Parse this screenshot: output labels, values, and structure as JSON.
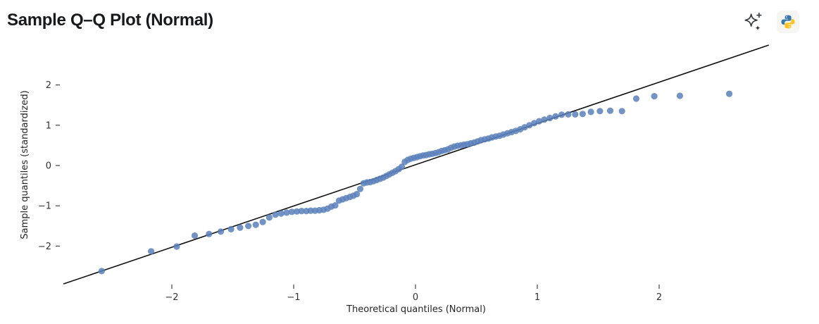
{
  "header": {
    "title": "Sample Q–Q Plot (Normal)",
    "icons": [
      {
        "name": "ai-sparkle-icon",
        "color": "#33393d"
      },
      {
        "name": "python-logo-icon",
        "blue": "#3776ab",
        "yellow": "#fcc21f"
      }
    ]
  },
  "chart_data": {
    "type": "scatter",
    "title": "Sample Q–Q Plot (Normal)",
    "xlabel": "Theoretical quantiles (Normal)",
    "ylabel": "Sample quantiles (standardized)",
    "x_ticks": [
      -2,
      -1,
      0,
      1,
      2
    ],
    "y_ticks": [
      -2,
      -1,
      0,
      1,
      2
    ],
    "xlim": [
      -2.92,
      2.95
    ],
    "ylim": [
      -2.97,
      2.99
    ],
    "grid": false,
    "legend": null,
    "point_color": "#5b80bb",
    "point_opacity": 0.85,
    "reference_line": {
      "type": "y=x",
      "from": [
        -2.89,
        -2.94
      ],
      "to": [
        2.9,
        2.99
      ],
      "color": "#111111"
    },
    "points": [
      [
        -2.576,
        -2.62
      ],
      [
        -2.17,
        -2.13
      ],
      [
        -1.96,
        -2.01
      ],
      [
        -1.812,
        -1.74
      ],
      [
        -1.695,
        -1.7
      ],
      [
        -1.598,
        -1.64
      ],
      [
        -1.514,
        -1.58
      ],
      [
        -1.44,
        -1.54
      ],
      [
        -1.372,
        -1.5
      ],
      [
        -1.311,
        -1.47
      ],
      [
        -1.254,
        -1.4
      ],
      [
        -1.2,
        -1.29
      ],
      [
        -1.15,
        -1.22
      ],
      [
        -1.103,
        -1.19
      ],
      [
        -1.058,
        -1.17
      ],
      [
        -1.015,
        -1.15
      ],
      [
        -0.974,
        -1.14
      ],
      [
        -0.935,
        -1.13
      ],
      [
        -0.896,
        -1.13
      ],
      [
        -0.86,
        -1.12
      ],
      [
        -0.824,
        -1.12
      ],
      [
        -0.789,
        -1.11
      ],
      [
        -0.755,
        -1.1
      ],
      [
        -0.722,
        -1.07
      ],
      [
        -0.69,
        -1.02
      ],
      [
        -0.659,
        -0.99
      ],
      [
        -0.628,
        -0.87
      ],
      [
        -0.598,
        -0.84
      ],
      [
        -0.568,
        -0.81
      ],
      [
        -0.539,
        -0.78
      ],
      [
        -0.51,
        -0.75
      ],
      [
        -0.482,
        -0.71
      ],
      [
        -0.454,
        -0.58
      ],
      [
        -0.426,
        -0.44
      ],
      [
        -0.399,
        -0.42
      ],
      [
        -0.372,
        -0.41
      ],
      [
        -0.345,
        -0.39
      ],
      [
        -0.319,
        -0.36
      ],
      [
        -0.292,
        -0.33
      ],
      [
        -0.266,
        -0.3
      ],
      [
        -0.24,
        -0.26
      ],
      [
        -0.215,
        -0.22
      ],
      [
        -0.189,
        -0.18
      ],
      [
        -0.164,
        -0.14
      ],
      [
        -0.138,
        -0.09
      ],
      [
        -0.113,
        -0.03
      ],
      [
        -0.088,
        0.09
      ],
      [
        -0.063,
        0.14
      ],
      [
        -0.038,
        0.17
      ],
      [
        -0.013,
        0.19
      ],
      [
        0.013,
        0.21
      ],
      [
        0.038,
        0.23
      ],
      [
        0.063,
        0.25
      ],
      [
        0.088,
        0.26
      ],
      [
        0.113,
        0.28
      ],
      [
        0.138,
        0.29
      ],
      [
        0.164,
        0.31
      ],
      [
        0.189,
        0.33
      ],
      [
        0.215,
        0.36
      ],
      [
        0.24,
        0.38
      ],
      [
        0.266,
        0.4
      ],
      [
        0.292,
        0.44
      ],
      [
        0.319,
        0.47
      ],
      [
        0.345,
        0.49
      ],
      [
        0.372,
        0.5
      ],
      [
        0.399,
        0.52
      ],
      [
        0.426,
        0.53
      ],
      [
        0.454,
        0.55
      ],
      [
        0.482,
        0.57
      ],
      [
        0.51,
        0.6
      ],
      [
        0.539,
        0.63
      ],
      [
        0.568,
        0.65
      ],
      [
        0.598,
        0.67
      ],
      [
        0.628,
        0.7
      ],
      [
        0.659,
        0.72
      ],
      [
        0.69,
        0.74
      ],
      [
        0.722,
        0.77
      ],
      [
        0.755,
        0.8
      ],
      [
        0.789,
        0.83
      ],
      [
        0.824,
        0.86
      ],
      [
        0.86,
        0.9
      ],
      [
        0.896,
        0.95
      ],
      [
        0.935,
        1.0
      ],
      [
        0.974,
        1.05
      ],
      [
        1.015,
        1.1
      ],
      [
        1.058,
        1.14
      ],
      [
        1.103,
        1.18
      ],
      [
        1.15,
        1.22
      ],
      [
        1.2,
        1.26
      ],
      [
        1.254,
        1.27
      ],
      [
        1.311,
        1.27
      ],
      [
        1.372,
        1.28
      ],
      [
        1.44,
        1.33
      ],
      [
        1.514,
        1.35
      ],
      [
        1.598,
        1.36
      ],
      [
        1.695,
        1.35
      ],
      [
        1.812,
        1.66
      ],
      [
        1.96,
        1.72
      ],
      [
        2.17,
        1.73
      ],
      [
        2.576,
        1.78
      ]
    ]
  }
}
